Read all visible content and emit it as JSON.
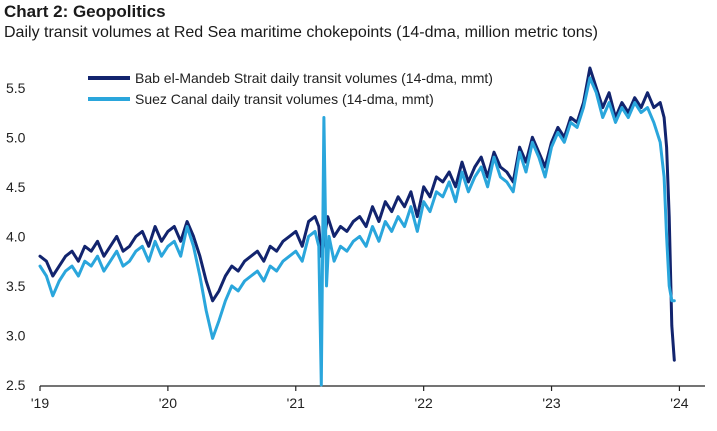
{
  "header": {
    "title": "Chart 2: Geopolitics",
    "subtitle": "Daily transit volumes at Red Sea maritime chokepoints (14-dma, million metric tons)"
  },
  "colors": {
    "bab_el_mandeb": "#12246e",
    "suez": "#2aa6dc",
    "axis": "#222222",
    "tick_text": "#222222"
  },
  "chart_data": {
    "type": "line",
    "ylim": [
      2.5,
      5.75
    ],
    "yticks": [
      {
        "value": 2.5,
        "label": "2.5"
      },
      {
        "value": 3.0,
        "label": "3.0"
      },
      {
        "value": 3.5,
        "label": "3.5"
      },
      {
        "value": 4.0,
        "label": "4.0"
      },
      {
        "value": 4.5,
        "label": "4.5"
      },
      {
        "value": 5.0,
        "label": "5.0"
      },
      {
        "value": 5.5,
        "label": "5.5"
      }
    ],
    "xlim": [
      2019.0,
      2024.2
    ],
    "xticks": [
      {
        "value": 2019,
        "label": "'19"
      },
      {
        "value": 2020,
        "label": "'20"
      },
      {
        "value": 2021,
        "label": "'21"
      },
      {
        "value": 2022,
        "label": "'22"
      },
      {
        "value": 2023,
        "label": "'23"
      },
      {
        "value": 2024,
        "label": "'24"
      }
    ],
    "grid": false,
    "legend_position": "top-left",
    "series": [
      {
        "name": "Bab el-Mandeb Strait daily transit volumes (14-dma, mmt)",
        "color": "#12246e",
        "x": [
          2019.0,
          2019.05,
          2019.1,
          2019.15,
          2019.2,
          2019.25,
          2019.3,
          2019.35,
          2019.4,
          2019.45,
          2019.5,
          2019.55,
          2019.6,
          2019.65,
          2019.7,
          2019.75,
          2019.8,
          2019.85,
          2019.9,
          2019.95,
          2020.0,
          2020.05,
          2020.1,
          2020.15,
          2020.2,
          2020.25,
          2020.3,
          2020.35,
          2020.4,
          2020.45,
          2020.5,
          2020.55,
          2020.6,
          2020.65,
          2020.7,
          2020.75,
          2020.8,
          2020.85,
          2020.9,
          2020.95,
          2021.0,
          2021.05,
          2021.1,
          2021.15,
          2021.18,
          2021.2,
          2021.25,
          2021.3,
          2021.35,
          2021.4,
          2021.45,
          2021.5,
          2021.55,
          2021.6,
          2021.65,
          2021.7,
          2021.75,
          2021.8,
          2021.85,
          2021.9,
          2021.95,
          2022.0,
          2022.05,
          2022.1,
          2022.15,
          2022.2,
          2022.25,
          2022.3,
          2022.35,
          2022.4,
          2022.45,
          2022.5,
          2022.55,
          2022.6,
          2022.65,
          2022.7,
          2022.75,
          2022.8,
          2022.85,
          2022.9,
          2022.95,
          2023.0,
          2023.05,
          2023.1,
          2023.15,
          2023.2,
          2023.25,
          2023.3,
          2023.35,
          2023.4,
          2023.45,
          2023.5,
          2023.55,
          2023.6,
          2023.65,
          2023.7,
          2023.75,
          2023.8,
          2023.85,
          2023.88,
          2023.9,
          2023.92,
          2023.94,
          2023.96
        ],
        "y": [
          3.8,
          3.75,
          3.6,
          3.7,
          3.8,
          3.85,
          3.75,
          3.9,
          3.85,
          3.95,
          3.8,
          3.9,
          4.0,
          3.85,
          3.9,
          4.0,
          4.05,
          3.9,
          4.1,
          3.95,
          4.05,
          4.1,
          3.95,
          4.15,
          4.0,
          3.8,
          3.55,
          3.35,
          3.45,
          3.6,
          3.7,
          3.65,
          3.75,
          3.8,
          3.85,
          3.75,
          3.9,
          3.85,
          3.95,
          4.0,
          4.05,
          3.9,
          4.15,
          4.2,
          4.1,
          3.8,
          4.2,
          4.0,
          4.1,
          4.05,
          4.15,
          4.2,
          4.1,
          4.3,
          4.15,
          4.35,
          4.25,
          4.4,
          4.3,
          4.45,
          4.2,
          4.5,
          4.4,
          4.6,
          4.55,
          4.65,
          4.5,
          4.75,
          4.55,
          4.7,
          4.8,
          4.6,
          4.85,
          4.7,
          4.65,
          4.55,
          4.9,
          4.75,
          5.0,
          4.85,
          4.7,
          4.95,
          5.1,
          5.0,
          5.2,
          5.15,
          5.35,
          5.7,
          5.5,
          5.3,
          5.45,
          5.2,
          5.35,
          5.25,
          5.4,
          5.3,
          5.45,
          5.3,
          5.35,
          5.2,
          4.9,
          4.2,
          3.1,
          2.75
        ]
      },
      {
        "name": "Suez Canal daily transit volumes (14-dma, mmt)",
        "color": "#2aa6dc",
        "x": [
          2019.0,
          2019.05,
          2019.1,
          2019.15,
          2019.2,
          2019.25,
          2019.3,
          2019.35,
          2019.4,
          2019.45,
          2019.5,
          2019.55,
          2019.6,
          2019.65,
          2019.7,
          2019.75,
          2019.8,
          2019.85,
          2019.9,
          2019.95,
          2020.0,
          2020.05,
          2020.1,
          2020.15,
          2020.2,
          2020.25,
          2020.3,
          2020.35,
          2020.4,
          2020.45,
          2020.5,
          2020.55,
          2020.6,
          2020.65,
          2020.7,
          2020.75,
          2020.8,
          2020.85,
          2020.9,
          2020.95,
          2021.0,
          2021.05,
          2021.1,
          2021.15,
          2021.18,
          2021.2,
          2021.22,
          2021.24,
          2021.26,
          2021.3,
          2021.35,
          2021.4,
          2021.45,
          2021.5,
          2021.55,
          2021.6,
          2021.65,
          2021.7,
          2021.75,
          2021.8,
          2021.85,
          2021.9,
          2021.95,
          2022.0,
          2022.05,
          2022.1,
          2022.15,
          2022.2,
          2022.25,
          2022.3,
          2022.35,
          2022.4,
          2022.45,
          2022.5,
          2022.55,
          2022.6,
          2022.65,
          2022.7,
          2022.75,
          2022.8,
          2022.85,
          2022.9,
          2022.95,
          2023.0,
          2023.05,
          2023.1,
          2023.15,
          2023.2,
          2023.25,
          2023.3,
          2023.35,
          2023.4,
          2023.45,
          2023.5,
          2023.55,
          2023.6,
          2023.65,
          2023.7,
          2023.75,
          2023.8,
          2023.85,
          2023.88,
          2023.9,
          2023.92,
          2023.94,
          2023.96
        ],
        "y": [
          3.7,
          3.6,
          3.4,
          3.55,
          3.65,
          3.7,
          3.6,
          3.75,
          3.7,
          3.8,
          3.65,
          3.75,
          3.85,
          3.7,
          3.75,
          3.85,
          3.9,
          3.75,
          3.95,
          3.8,
          3.9,
          3.95,
          3.8,
          4.1,
          3.9,
          3.6,
          3.25,
          2.97,
          3.15,
          3.35,
          3.5,
          3.45,
          3.55,
          3.6,
          3.65,
          3.55,
          3.7,
          3.65,
          3.75,
          3.8,
          3.85,
          3.75,
          4.0,
          4.05,
          3.9,
          2.5,
          5.2,
          3.5,
          4.0,
          3.75,
          3.9,
          3.85,
          3.95,
          4.0,
          3.9,
          4.1,
          3.95,
          4.15,
          4.05,
          4.2,
          4.1,
          4.3,
          4.05,
          4.35,
          4.25,
          4.45,
          4.4,
          4.55,
          4.35,
          4.65,
          4.45,
          4.6,
          4.7,
          4.5,
          4.8,
          4.6,
          4.55,
          4.45,
          4.85,
          4.65,
          4.95,
          4.8,
          4.6,
          4.9,
          5.05,
          4.95,
          5.15,
          5.1,
          5.3,
          5.6,
          5.45,
          5.2,
          5.35,
          5.15,
          5.3,
          5.2,
          5.35,
          5.25,
          5.3,
          5.15,
          4.95,
          4.6,
          4.0,
          3.5,
          3.35,
          3.35
        ]
      }
    ]
  }
}
